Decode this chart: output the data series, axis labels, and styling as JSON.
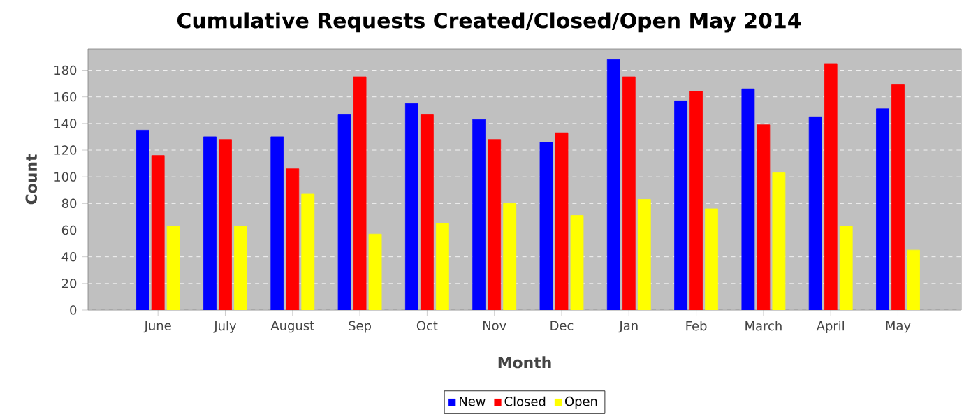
{
  "chart_data": {
    "type": "bar",
    "title": "Cumulative Requests Created/Closed/Open May 2014",
    "xlabel": "Month",
    "ylabel": "Count",
    "categories": [
      "June",
      "July",
      "August",
      "Sep",
      "Oct",
      "Nov",
      "Dec",
      "Jan",
      "Feb",
      "March",
      "April",
      "May"
    ],
    "series": [
      {
        "name": "New",
        "color": "#0000ff",
        "values": [
          135,
          130,
          130,
          147,
          155,
          143,
          126,
          188,
          157,
          166,
          145,
          151
        ]
      },
      {
        "name": "Closed",
        "color": "#ff0000",
        "values": [
          116,
          128,
          106,
          175,
          147,
          128,
          133,
          175,
          164,
          139,
          185,
          169
        ]
      },
      {
        "name": "Open",
        "color": "#ffff00",
        "values": [
          63,
          63,
          87,
          57,
          65,
          80,
          71,
          83,
          76,
          103,
          63,
          45
        ]
      }
    ],
    "ylim": [
      0,
      196
    ],
    "yticks": [
      0,
      20,
      40,
      60,
      80,
      100,
      120,
      140,
      160,
      180
    ],
    "grid": "y",
    "legend": "bottom"
  }
}
